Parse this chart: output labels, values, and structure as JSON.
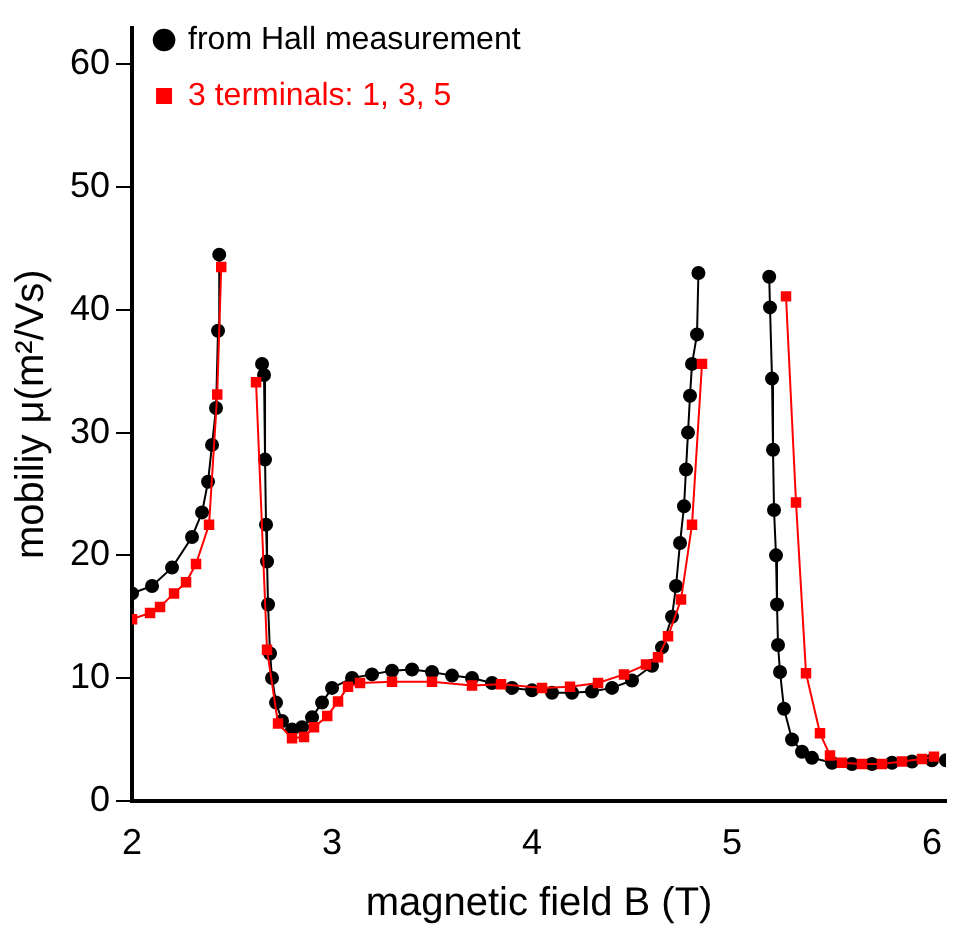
{
  "chart_data": {
    "type": "line",
    "xlabel": "magnetic field B (T)",
    "ylabel": "mobiliy μ(m²/Vs)",
    "xlim": [
      2,
      6.07
    ],
    "xticks": [
      2,
      3,
      4,
      5,
      6
    ],
    "ylim": [
      0,
      63
    ],
    "yticks": [
      0,
      10,
      20,
      30,
      40,
      50,
      60
    ],
    "grid": false,
    "legend": "top left",
    "series": [
      {
        "name": "from Hall measurement",
        "color": "#000000",
        "marker": "circle",
        "x": [
          2.0,
          2.1,
          2.2,
          2.3,
          2.35,
          2.38,
          2.4,
          2.42,
          2.43,
          2.436,
          2.55,
          2.65,
          2.66,
          2.665,
          2.67,
          2.675,
          2.68,
          2.69,
          2.7,
          2.72,
          2.75,
          2.8,
          2.85,
          2.9,
          2.95,
          3.0,
          3.1,
          3.2,
          3.3,
          3.4,
          3.5,
          3.6,
          3.7,
          3.8,
          3.9,
          4.0,
          4.1,
          4.2,
          4.3,
          4.4,
          4.5,
          4.6,
          4.65,
          4.7,
          4.72,
          4.74,
          4.76,
          4.77,
          4.78,
          4.79,
          4.8,
          4.825,
          4.832,
          5.0,
          5.186,
          5.19,
          5.2,
          5.205,
          5.21,
          5.22,
          5.225,
          5.23,
          5.24,
          5.26,
          5.3,
          5.35,
          5.4,
          5.5,
          5.6,
          5.7,
          5.8,
          5.9,
          6.0,
          6.07
        ],
        "values": [
          16.9,
          17.5,
          19,
          21.5,
          23.5,
          26,
          29,
          32,
          38.3,
          44.5,
          null,
          35.6,
          34.7,
          27.8,
          22.5,
          19.5,
          16,
          12,
          10,
          8,
          6.5,
          5.8,
          6,
          6.8,
          8,
          9.2,
          10,
          10.3,
          10.6,
          10.7,
          10.5,
          10.2,
          10,
          9.6,
          9.2,
          9,
          8.8,
          8.8,
          8.9,
          9.2,
          9.8,
          11,
          12.5,
          15,
          17.5,
          21,
          24,
          27,
          30,
          33,
          35.6,
          38,
          43,
          null,
          42.7,
          40.2,
          34.4,
          28.6,
          23.7,
          20,
          16,
          12.7,
          10.5,
          7.5,
          5,
          4,
          3.5,
          3.1,
          3,
          3,
          3.1,
          3.2,
          3.3,
          3.3
        ]
      },
      {
        "name": "3 terminals: 1, 3, 5",
        "color": "#ff0000",
        "marker": "square",
        "x": [
          2.0,
          2.09,
          2.14,
          2.21,
          2.27,
          2.32,
          2.385,
          2.426,
          2.446,
          2.53,
          2.62,
          2.675,
          2.73,
          2.8,
          2.86,
          2.91,
          2.976,
          3.03,
          3.08,
          3.14,
          3.3,
          3.5,
          3.7,
          3.845,
          4.05,
          4.19,
          4.33,
          4.46,
          4.57,
          4.63,
          4.68,
          4.745,
          4.8,
          4.85,
          5.05,
          5.27,
          5.32,
          5.37,
          5.44,
          5.49,
          5.55,
          5.65,
          5.75,
          5.85,
          5.95,
          6.01
        ],
        "values": [
          14.8,
          15.3,
          15.8,
          16.9,
          17.8,
          19.3,
          22.5,
          33.1,
          43.5,
          null,
          34.1,
          12.3,
          6.3,
          5.1,
          5.2,
          6,
          6.9,
          8.1,
          9.3,
          9.6,
          9.7,
          9.7,
          9.4,
          9.5,
          9.2,
          9.3,
          9.6,
          10.3,
          11.1,
          11.7,
          13.4,
          16.4,
          22.5,
          35.6,
          null,
          41.1,
          24.3,
          10.4,
          5.5,
          3.7,
          3.1,
          3,
          3,
          3.2,
          3.4,
          3.6
        ]
      }
    ]
  }
}
